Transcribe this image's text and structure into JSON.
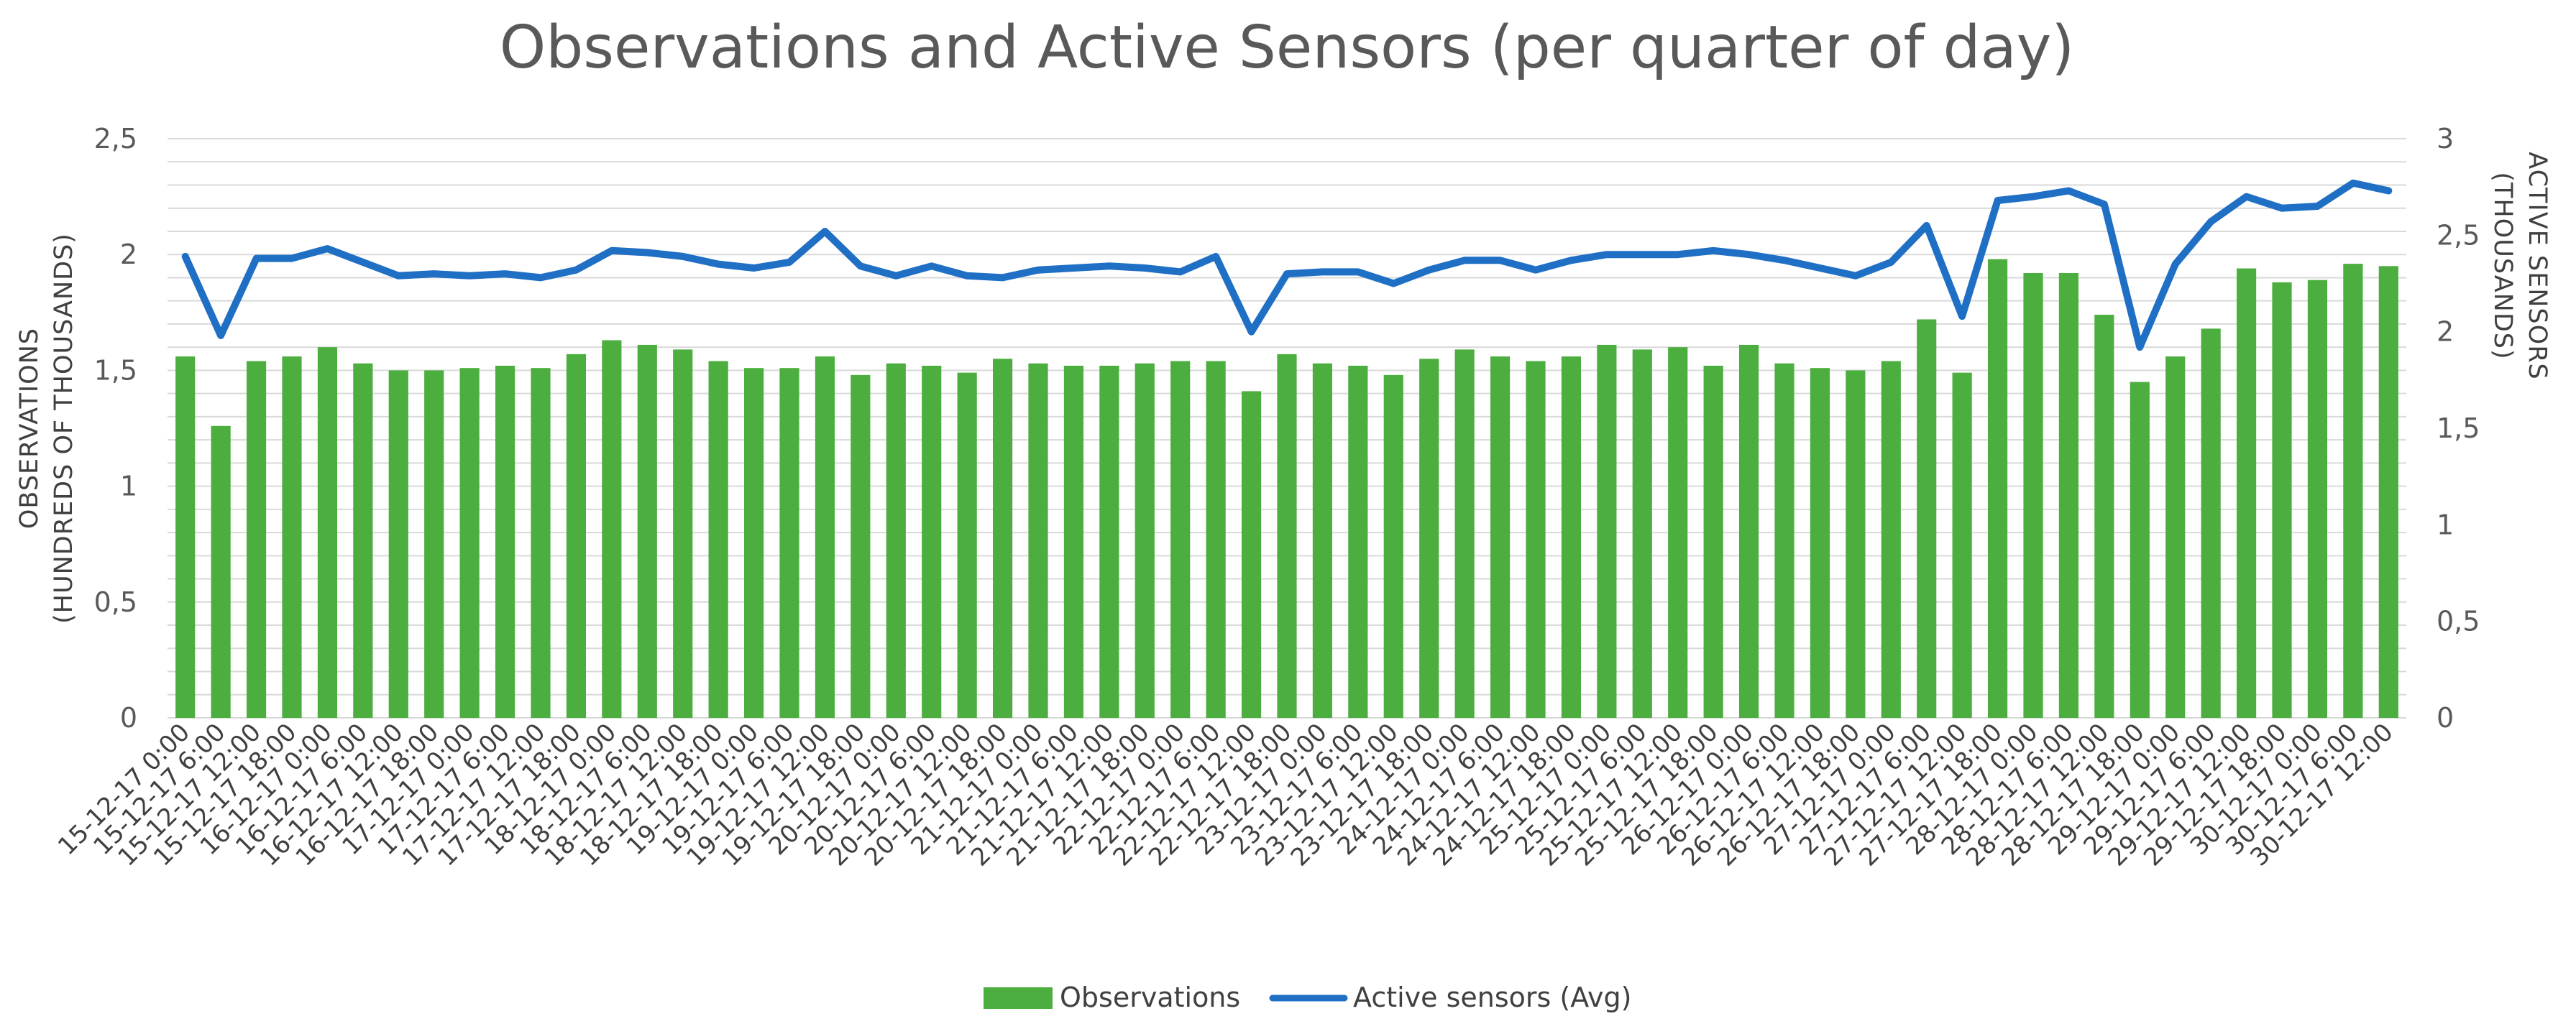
{
  "chart_data": {
    "type": "bar+line",
    "title": "Observations and Active Sensors (per quarter of day)",
    "left_axis": {
      "title_lines": [
        "OBSERVATIONS",
        "(HUNDREDS OF THOUSANDS)"
      ],
      "range": [
        0,
        2.5
      ],
      "ticks": [
        0,
        0.5,
        1,
        1.5,
        2,
        2.5
      ],
      "tick_labels": [
        "0",
        "0,5",
        "1",
        "1,5",
        "2",
        "2,5"
      ]
    },
    "right_axis": {
      "title_lines": [
        "ACTIVE SENSORS",
        "(THOUSANDS)"
      ],
      "range": [
        0,
        3
      ],
      "ticks": [
        0,
        0.5,
        1,
        1.5,
        2,
        2.5,
        3
      ],
      "tick_labels": [
        "0",
        "0,5",
        "1",
        "1,5",
        "2",
        "2,5",
        "3"
      ]
    },
    "categories": [
      "15-12-17 0:00",
      "15-12-17 6:00",
      "15-12-17 12:00",
      "15-12-17 18:00",
      "16-12-17 0:00",
      "16-12-17 6:00",
      "16-12-17 12:00",
      "16-12-17 18:00",
      "17-12-17 0:00",
      "17-12-17 6:00",
      "17-12-17 12:00",
      "17-12-17 18:00",
      "18-12-17 0:00",
      "18-12-17 6:00",
      "18-12-17 12:00",
      "18-12-17 18:00",
      "19-12-17 0:00",
      "19-12-17 6:00",
      "19-12-17 12:00",
      "19-12-17 18:00",
      "20-12-17 0:00",
      "20-12-17 6:00",
      "20-12-17 12:00",
      "20-12-17 18:00",
      "21-12-17 0:00",
      "21-12-17 6:00",
      "21-12-17 12:00",
      "21-12-17 18:00",
      "22-12-17 0:00",
      "22-12-17 6:00",
      "22-12-17 12:00",
      "22-12-17 18:00",
      "23-12-17 0:00",
      "23-12-17 6:00",
      "23-12-17 12:00",
      "23-12-17 18:00",
      "24-12-17 0:00",
      "24-12-17 6:00",
      "24-12-17 12:00",
      "24-12-17 18:00",
      "25-12-17 0:00",
      "25-12-17 6:00",
      "25-12-17 12:00",
      "25-12-17 18:00",
      "26-12-17 0:00",
      "26-12-17 6:00",
      "26-12-17 12:00",
      "26-12-17 18:00",
      "27-12-17 0:00",
      "27-12-17 6:00",
      "27-12-17 12:00",
      "27-12-17 18:00",
      "28-12-17 0:00",
      "28-12-17 6:00",
      "28-12-17 12:00",
      "28-12-17 18:00",
      "29-12-17 0:00",
      "29-12-17 6:00",
      "29-12-17 12:00",
      "29-12-17 18:00",
      "30-12-17 0:00",
      "30-12-17 6:00",
      "30-12-17 12:00"
    ],
    "x_tick_labels": [
      "15-12-17 0:00",
      "15-12-17 6:00",
      "15-12-17 12:00",
      "15-12-17 18:00",
      "16-12-17 0:00",
      "16-12-17 6:00",
      "16-12-17 12:00",
      "16-12-17 18:00",
      "17-12-17 0:00",
      "17-12-17 6:00",
      "17-12-17 12:00",
      "17-12-17 18:00",
      "18-12-17 0:00",
      "18-12-17 6:00",
      "18-12-17 12:00",
      "18-12-17 18:00",
      "19-12-17 0:00",
      "19-12-17 6:00",
      "19-12-17 12:00",
      "19-12-17 18:00",
      "20-12-17 0:00",
      "20-12-17 6:00",
      "20-12-17 12:00",
      "20-12-17 18:00",
      "21-12-17 0:00",
      "21-12-17 6:00",
      "21-12-17 12:00",
      "21-12-17 18:00",
      "22-12-17 0:00",
      "22-12-17 6:00",
      "22-12-17 12:00",
      "22-12-17 18:00",
      "23-12-17 0:00",
      "23-12-17 6:00",
      "23-12-17 12:00",
      "23-12-17 18:00",
      "24-12-17 0:00",
      "24-12-17 6:00",
      "24-12-17 12:00",
      "24-12-17 18:00",
      "25-12-17 0:00",
      "25-12-17 6:00",
      "25-12-17 12:00",
      "25-12-17 18:00",
      "26-12-17 0:00",
      "26-12-17 6:00",
      "26-12-17 12:00",
      "26-12-17 18:00",
      "27-12-17 0:00",
      "27-12-17 6:00",
      "27-12-17 12:00",
      "27-12-17 18:00",
      "28-12-17 0:00",
      "28-12-17 6:00",
      "28-12-17 12:00",
      "28-12-17 18:00",
      "29-12-17 0:00",
      "29-12-17 6:00",
      "29-12-17 12:00",
      "29-12-17 18:00",
      "30-12-17 0:00",
      "30-12-17 6:00",
      "30-12-17 12:00"
    ],
    "series": [
      {
        "name": "Observations",
        "kind": "bar",
        "axis": "left",
        "color": "#4cae3f",
        "values": [
          1.56,
          1.26,
          1.54,
          1.56,
          1.6,
          1.53,
          1.5,
          1.5,
          1.51,
          1.52,
          1.51,
          1.57,
          1.63,
          1.61,
          1.59,
          1.54,
          1.51,
          1.51,
          1.56,
          1.48,
          1.53,
          1.52,
          1.49,
          1.55,
          1.53,
          1.52,
          1.52,
          1.53,
          1.54,
          1.54,
          1.41,
          1.57,
          1.53,
          1.52,
          1.48,
          1.55,
          1.59,
          1.56,
          1.54,
          1.56,
          1.61,
          1.59,
          1.6,
          1.52,
          1.61,
          1.53,
          1.51,
          1.5,
          1.54,
          1.72,
          1.49,
          1.98,
          1.92,
          1.92,
          1.74,
          1.45,
          1.56,
          1.68,
          1.94,
          1.88,
          1.89,
          1.96,
          1.95
        ]
      },
      {
        "name": "Active sensors (Avg)",
        "kind": "line",
        "axis": "right",
        "color": "#1f6fc5",
        "values": [
          2.39,
          1.98,
          2.38,
          2.38,
          2.43,
          2.36,
          2.29,
          2.3,
          2.29,
          2.3,
          2.28,
          2.32,
          2.42,
          2.41,
          2.39,
          2.35,
          2.33,
          2.36,
          2.52,
          2.34,
          2.29,
          2.34,
          2.29,
          2.28,
          2.32,
          2.33,
          2.34,
          2.33,
          2.31,
          2.39,
          2.0,
          2.3,
          2.31,
          2.31,
          2.25,
          2.32,
          2.37,
          2.37,
          2.32,
          2.37,
          2.4,
          2.4,
          2.4,
          2.42,
          2.4,
          2.37,
          2.33,
          2.29,
          2.36,
          2.55,
          2.08,
          2.68,
          2.7,
          2.73,
          2.66,
          1.92,
          2.35,
          2.57,
          2.7,
          2.64,
          2.65,
          2.77,
          2.73
        ]
      }
    ],
    "legend": {
      "position": "bottom",
      "items": [
        {
          "label": "Observations",
          "color": "#4cae3f",
          "marker": "box"
        },
        {
          "label": "Active sensors (Avg)",
          "color": "#1f6fc5",
          "marker": "line"
        }
      ]
    },
    "grid": true
  }
}
